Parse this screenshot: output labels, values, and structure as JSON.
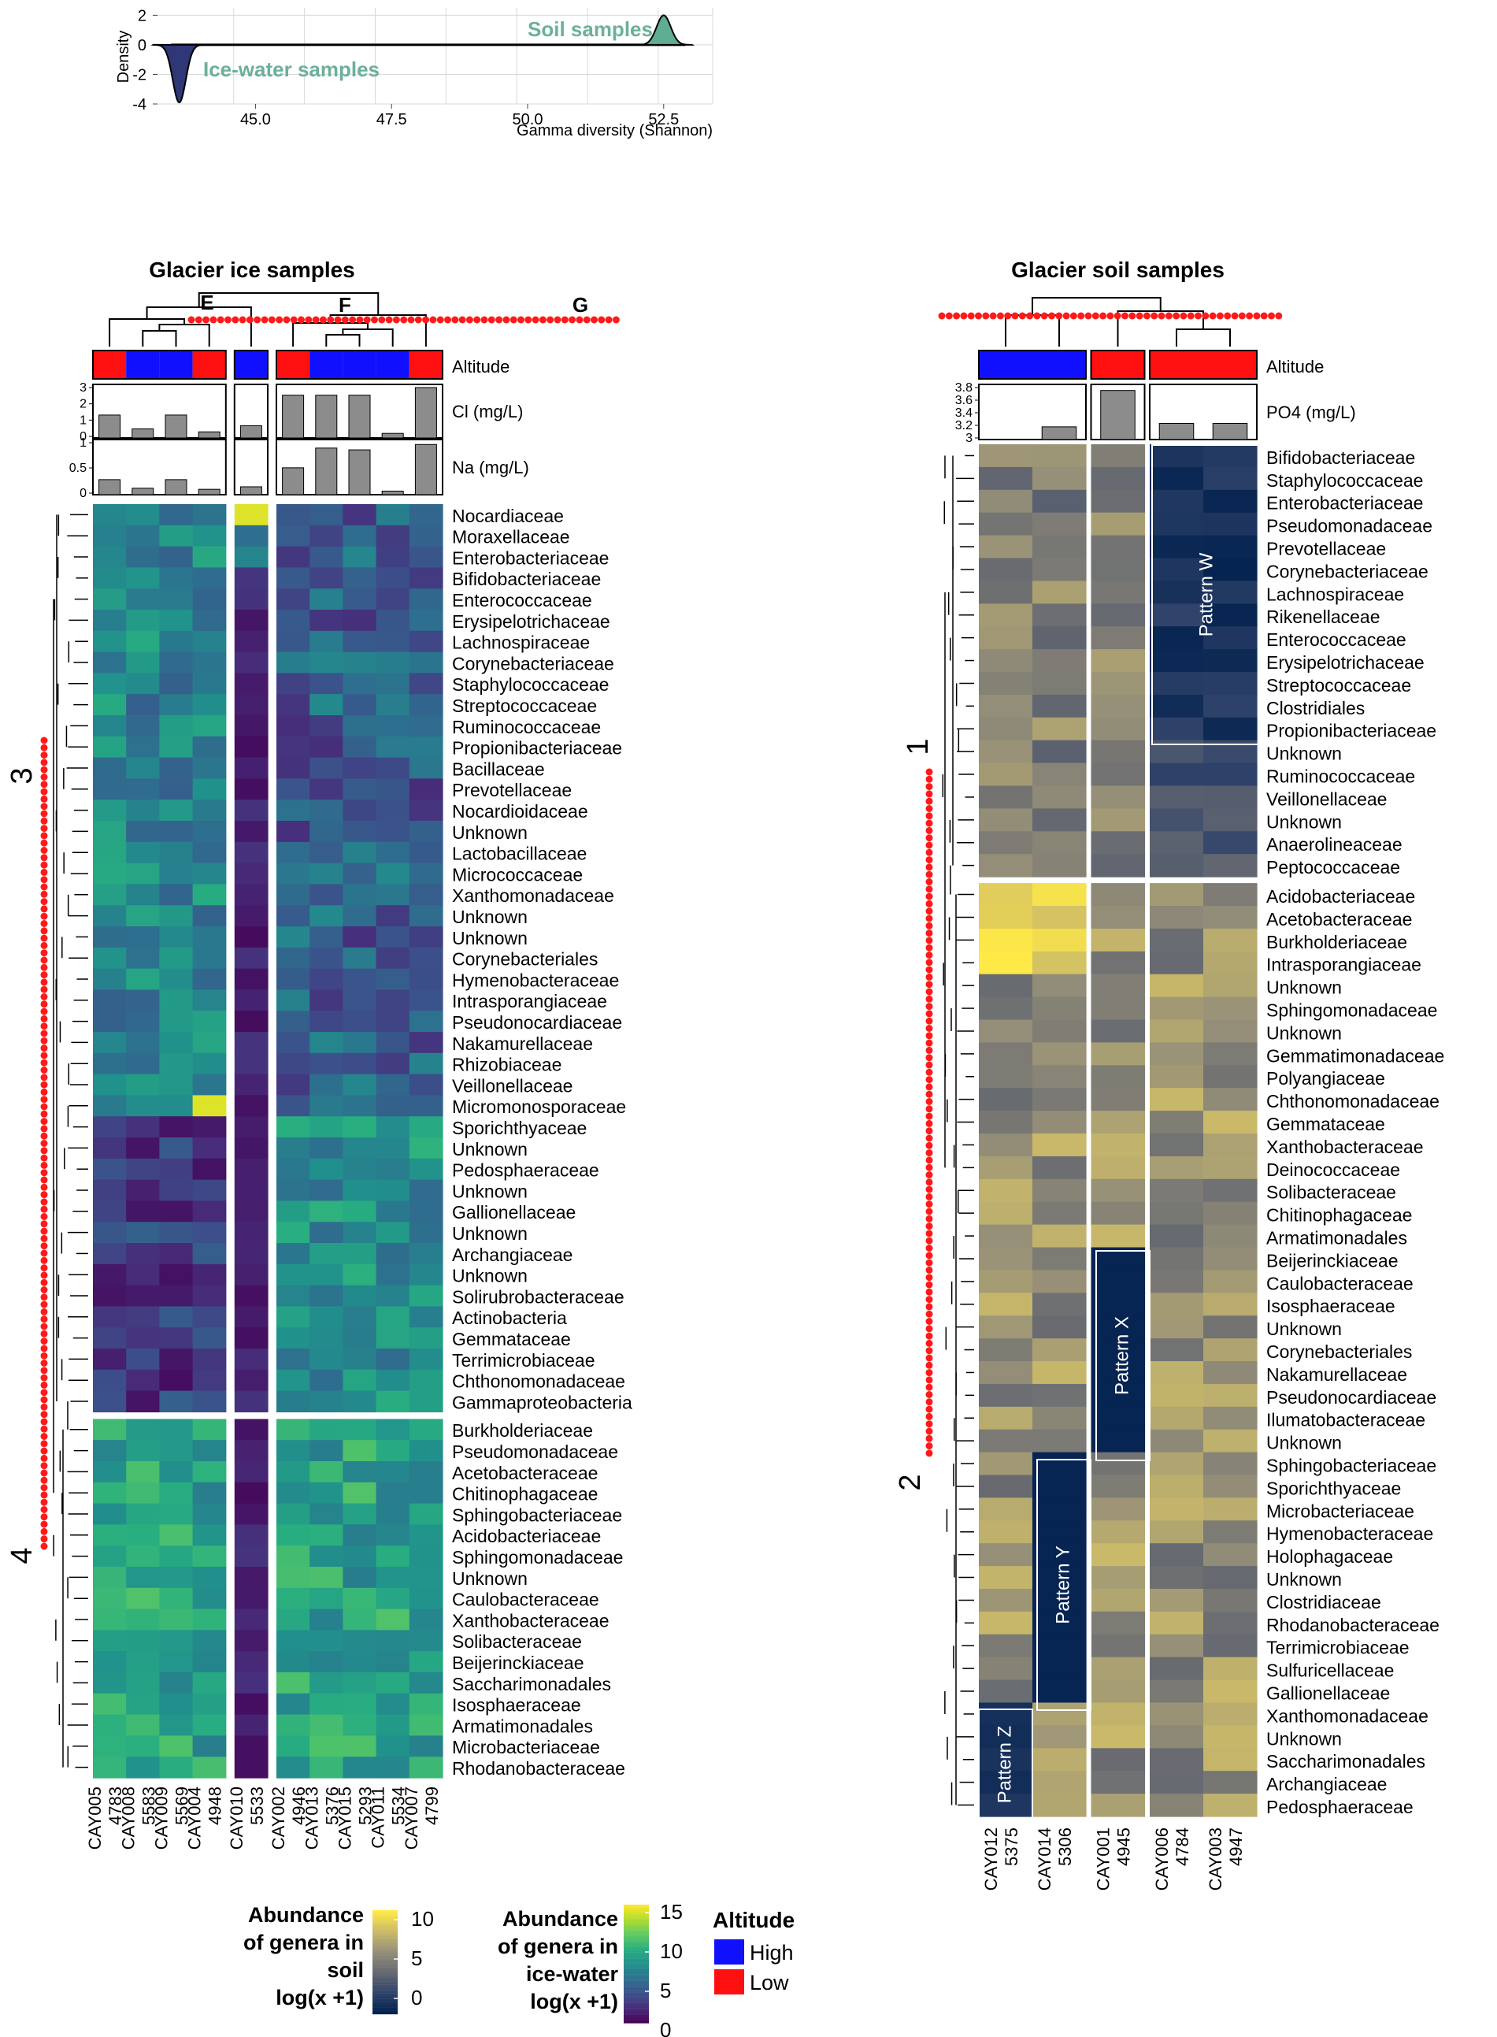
{
  "colors": {
    "high": "#1010ff",
    "low": "#ff1010",
    "bar": "#8c8c8c",
    "density_ice": "#2f3777",
    "density_soil": "#5fae94",
    "density_label": "#6bb09c",
    "dots": "#ff1a1a"
  },
  "chart_data": [
    {
      "type": "area",
      "name": "gamma-diversity-density",
      "xlabel": "Gamma diversity (Shannon)",
      "ylabel": "Density",
      "xlim": [
        43.2,
        53.4
      ],
      "ylim": [
        -4,
        2.5
      ],
      "xticks": [
        "45.0",
        "47.5",
        "50.0",
        "52.5"
      ],
      "xtick_values": [
        45.0,
        47.5,
        50.0,
        52.5
      ],
      "yticks": [
        "2",
        "0",
        "-2",
        "-4"
      ],
      "ytick_values": [
        2,
        0,
        -2,
        -4
      ],
      "series": [
        {
          "name": "Ice-water samples",
          "center": 43.6,
          "peak": -3.9,
          "spread": 0.12
        },
        {
          "name": "Soil samples",
          "center": 52.5,
          "peak": 2.0,
          "spread": 0.13
        }
      ]
    },
    {
      "type": "heatmap",
      "name": "glacier-ice-heatmap",
      "title": "Glacier ice samples",
      "group_letters": [
        "E",
        "F",
        "G"
      ],
      "groups": [
        {
          "columns": [
            {
              "name": "CAY005",
              "code": "4783",
              "altitude": "Low",
              "cl": 1.5,
              "na": 0.42
            },
            {
              "name": "CAY008",
              "code": "5583",
              "altitude": "High",
              "cl": 0.6,
              "na": 0.18
            },
            {
              "name": "CAY009",
              "code": "5569",
              "altitude": "High",
              "cl": 1.5,
              "na": 0.42
            },
            {
              "name": "CAY004",
              "code": "4948",
              "altitude": "Low",
              "cl": 0.4,
              "na": 0.15
            }
          ]
        },
        {
          "columns": [
            {
              "name": "CAY010",
              "code": "5533",
              "altitude": "High",
              "cl": 0.8,
              "na": 0.22
            }
          ]
        },
        {
          "columns": [
            {
              "name": "CAY002",
              "code": "4946",
              "altitude": "Low",
              "cl": 2.8,
              "na": 0.75
            },
            {
              "name": "CAY013",
              "code": "5376",
              "altitude": "High",
              "cl": 2.8,
              "na": 1.3
            },
            {
              "name": "CAY015",
              "code": "5293",
              "altitude": "High",
              "cl": 2.8,
              "na": 1.25
            },
            {
              "name": "CAY011",
              "code": "5534",
              "altitude": "High",
              "cl": 0.3,
              "na": 0.1
            },
            {
              "name": "CAY007",
              "code": "4799",
              "altitude": "Low",
              "cl": 3.3,
              "na": 1.4
            }
          ]
        }
      ],
      "annotation_label": "Altitude",
      "bar1_label": "Cl (mg/L)",
      "bar1_ticks": [
        "3",
        "2",
        "1",
        "0"
      ],
      "bar1_max": 3.3,
      "bar2_label": "Na (mg/L)",
      "bar2_ticks": [
        "1",
        "0.5",
        "0"
      ],
      "bar2_max": 1.45,
      "cluster_labels": [
        "3",
        "4"
      ],
      "value_range": [
        0,
        15
      ],
      "row_blocks": [
        {
          "rows": [
            "Nocardiaceae",
            "Moraxellaceae",
            "Enterobacteriaceae",
            "Bifidobacteriaceae",
            "Enterococcaceae",
            "Erysipelotrichaceae",
            "Lachnospiraceae",
            "Corynebacteriaceae",
            "Staphylococcaceae",
            "Streptococcaceae",
            "Ruminococcaceae",
            "Propionibacteriaceae",
            "Bacillaceae",
            "Prevotellaceae",
            "Nocardioidaceae",
            "Unknown",
            "Lactobacillaceae",
            "Micrococcaceae",
            "Xanthomonadaceae",
            "Unknown",
            "Unknown",
            "Corynebacteriales",
            "Hymenobacteraceae",
            "Intrasporangiaceae",
            "Pseudonocardiaceae",
            "Nakamurellaceae",
            "Rhizobiaceae",
            "Veillonellaceae",
            "Micromonosporaceae",
            "Sporichthyaceae",
            "Unknown",
            "Pedosphaeraceae",
            "Unknown",
            "Gallionellaceae",
            "Unknown",
            "Archangiaceae",
            "Unknown",
            "Solirubrobacteraceae",
            "Actinobacteria",
            "Gemmataceae",
            "Terrimicrobiaceae",
            "Chthonomonadaceae",
            "Gammaproteobacteria"
          ]
        },
        {
          "rows": [
            "Burkholderiaceae",
            "Pseudomonadaceae",
            "Acetobacteraceae",
            "Chitinophagaceae",
            "Sphingobacteriaceae",
            "Acidobacteriaceae",
            "Sphingomonadaceae",
            "Unknown",
            "Caulobacteraceae",
            "Xanthobacteraceae",
            "Solibacteraceae",
            "Beijerinckiaceae",
            "Saccharimonadales",
            "Isosphaeraceae",
            "Armatimonadales",
            "Microbacteriaceae",
            "Rhodanobacteraceae"
          ]
        }
      ]
    },
    {
      "type": "heatmap",
      "name": "glacier-soil-heatmap",
      "title": "Glacier soil samples",
      "groups": [
        {
          "columns": [
            {
              "name": "CAY012",
              "code": "5375",
              "altitude": "High",
              "po4": 3.0
            },
            {
              "name": "CAY014",
              "code": "5306",
              "altitude": "High",
              "po4": 3.22
            }
          ]
        },
        {
          "columns": [
            {
              "name": "CAY001",
              "code": "4945",
              "altitude": "Low",
              "po4": 3.85
            }
          ]
        },
        {
          "columns": [
            {
              "name": "CAY006",
              "code": "4784",
              "altitude": "Low",
              "po4": 3.28
            },
            {
              "name": "CAY003",
              "code": "4947",
              "altitude": "Low",
              "po4": 3.28
            }
          ]
        }
      ],
      "annotation_label": "Altitude",
      "bar_label": "PO4 (mg/L)",
      "bar_ticks": [
        "3.8",
        "3.6",
        "3.4",
        "3.2",
        "3"
      ],
      "bar_range": [
        3,
        3.9
      ],
      "cluster_labels": [
        "1",
        "2"
      ],
      "value_range": [
        0,
        10
      ],
      "row_blocks": [
        {
          "rows": [
            "Bifidobacteriaceae",
            "Staphylococcaceae",
            "Enterobacteriaceae",
            "Pseudomonadaceae",
            "Prevotellaceae",
            "Corynebacteriaceae",
            "Lachnospiraceae",
            "Rikenellaceae",
            "Enterococcaceae",
            "Erysipelotrichaceae",
            "Streptococcaceae",
            "Clostridiales",
            "Propionibacteriaceae",
            "Unknown",
            "Ruminococcaceae",
            "Veillonellaceae",
            "Unknown",
            "Anaerolineaceae",
            "Peptococcaceae"
          ]
        },
        {
          "rows": [
            "Acidobacteriaceae",
            "Acetobacteraceae",
            "Burkholderiaceae",
            "Intrasporangiaceae",
            "Unknown",
            "Sphingomonadaceae",
            "Unknown",
            "Gemmatimonadaceae",
            "Polyangiaceae",
            "Chthonomonadaceae",
            "Gemmataceae",
            "Xanthobacteraceae",
            "Deinococcaceae",
            "Solibacteraceae",
            "Chitinophagaceae",
            "Armatimonadales",
            "Beijerinckiaceae",
            "Caulobacteraceae",
            "Isosphaeraceae",
            "Unknown",
            "Corynebacteriales",
            "Nakamurellaceae",
            "Pseudonocardiaceae",
            "Ilumatobacteraceae",
            "Unknown",
            "Sphingobacteriaceae",
            "Sporichthyaceae",
            "Microbacteriaceae",
            "Hymenobacteraceae",
            "Holophagaceae",
            "Unknown",
            "Clostridiaceae",
            "Rhodanobacteraceae",
            "Terrimicrobiaceae",
            "Sulfuricellaceae",
            "Gallionellaceae",
            "Xanthomonadaceae",
            "Unknown",
            "Saccharimonadales",
            "Archangiaceae",
            "Pedosphaeraceae"
          ]
        }
      ],
      "patterns": [
        "Pattern W",
        "Pattern X",
        "Pattern Y",
        "Pattern Z"
      ]
    }
  ],
  "legends": {
    "soil": {
      "title": [
        "Abundance",
        "of genera in",
        "soil",
        "log(x +1)"
      ],
      "ticks": [
        "10",
        "5",
        "0"
      ]
    },
    "ice": {
      "title": [
        "Abundance",
        "of genera in",
        "ice-water",
        "log(x +1)"
      ],
      "ticks": [
        "15",
        "10",
        "5",
        "0"
      ]
    },
    "altitude": {
      "title": "Altitude",
      "items": [
        "High",
        "Low"
      ]
    }
  }
}
